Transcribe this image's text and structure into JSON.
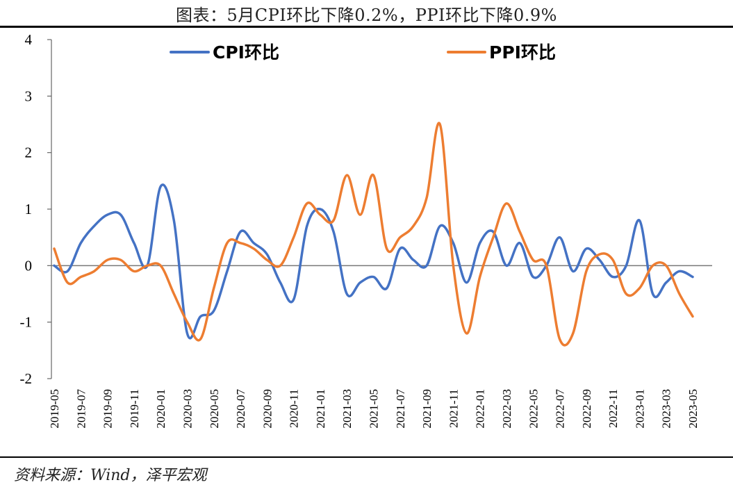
{
  "title": "图表：5月CPI环比下降0.2%，PPI环比下降0.9%",
  "source": "资料来源：Wind，泽平宏观",
  "chart_data": {
    "type": "line",
    "x": [
      "2019-05",
      "2019-06",
      "2019-07",
      "2019-08",
      "2019-09",
      "2019-10",
      "2019-11",
      "2019-12",
      "2020-01",
      "2020-02",
      "2020-03",
      "2020-04",
      "2020-05",
      "2020-06",
      "2020-07",
      "2020-08",
      "2020-09",
      "2020-10",
      "2020-11",
      "2020-12",
      "2021-01",
      "2021-02",
      "2021-03",
      "2021-04",
      "2021-05",
      "2021-06",
      "2021-07",
      "2021-08",
      "2021-09",
      "2021-10",
      "2021-11",
      "2021-12",
      "2022-01",
      "2022-02",
      "2022-03",
      "2022-04",
      "2022-05",
      "2022-06",
      "2022-07",
      "2022-08",
      "2022-09",
      "2022-10",
      "2022-11",
      "2022-12",
      "2023-01",
      "2023-02",
      "2023-03",
      "2023-04",
      "2023-05"
    ],
    "tick_labels": [
      "2019-05",
      "2019-07",
      "2019-09",
      "2019-11",
      "2020-01",
      "2020-03",
      "2020-05",
      "2020-07",
      "2020-09",
      "2020-11",
      "2021-01",
      "2021-03",
      "2021-05",
      "2021-07",
      "2021-09",
      "2021-11",
      "2022-01",
      "2022-03",
      "2022-05",
      "2022-07",
      "2022-09",
      "2022-11",
      "2023-01",
      "2023-03",
      "2023-05"
    ],
    "ylim": [
      -2,
      4
    ],
    "yticks": [
      -2,
      -1,
      0,
      1,
      2,
      3,
      4
    ],
    "legend_position": "top",
    "series": [
      {
        "name": "CPI环比",
        "color": "#4472C4",
        "values": [
          0.0,
          -0.1,
          0.4,
          0.7,
          0.9,
          0.9,
          0.4,
          0.0,
          1.4,
          0.8,
          -1.2,
          -0.9,
          -0.8,
          -0.1,
          0.6,
          0.4,
          0.2,
          -0.3,
          -0.6,
          0.7,
          1.0,
          0.6,
          -0.5,
          -0.3,
          -0.2,
          -0.4,
          0.3,
          0.1,
          0.0,
          0.7,
          0.4,
          -0.3,
          0.4,
          0.6,
          0.0,
          0.4,
          -0.2,
          0.0,
          0.5,
          -0.1,
          0.3,
          0.1,
          -0.2,
          0.0,
          0.8,
          -0.5,
          -0.3,
          -0.1,
          -0.2
        ]
      },
      {
        "name": "PPI环比",
        "color": "#ED7D31",
        "values": [
          0.3,
          -0.3,
          -0.2,
          -0.1,
          0.1,
          0.1,
          -0.1,
          0.0,
          0.0,
          -0.5,
          -1.0,
          -1.3,
          -0.4,
          0.4,
          0.4,
          0.3,
          0.1,
          0.0,
          0.5,
          1.1,
          0.9,
          0.8,
          1.6,
          0.9,
          1.6,
          0.3,
          0.5,
          0.7,
          1.2,
          2.5,
          0.0,
          -1.2,
          -0.2,
          0.5,
          1.1,
          0.6,
          0.1,
          0.0,
          -1.3,
          -1.2,
          -0.1,
          0.2,
          0.1,
          -0.5,
          -0.4,
          0.0,
          0.0,
          -0.5,
          -0.9
        ]
      }
    ]
  }
}
